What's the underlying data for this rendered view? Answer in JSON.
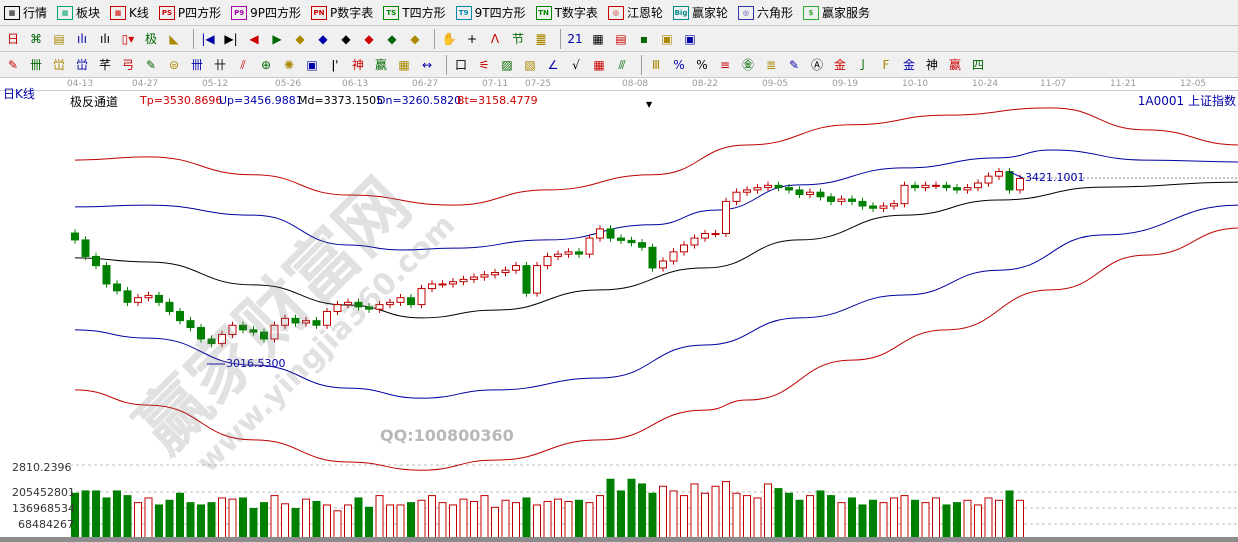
{
  "toolbar1": [
    {
      "icon": "table-icon",
      "label": "行情",
      "c": "#000"
    },
    {
      "icon": "blocks-icon",
      "label": "板块",
      "c": "#0a6"
    },
    {
      "icon": "kline-icon",
      "label": "K线",
      "c": "#c00"
    },
    {
      "icon": "ps-icon",
      "label": "P四方形",
      "tag": "PS",
      "c": "#c00"
    },
    {
      "icon": "p9-icon",
      "label": "9P四方形",
      "tag": "P9",
      "c": "#a0a"
    },
    {
      "icon": "pn-icon",
      "label": "P数字表",
      "tag": "PN",
      "c": "#c00"
    },
    {
      "icon": "ts-icon",
      "label": "T四方形",
      "tag": "TS",
      "c": "#080"
    },
    {
      "icon": "t9-icon",
      "label": "9T四方形",
      "tag": "T9",
      "c": "#08a"
    },
    {
      "icon": "tn-icon",
      "label": "T数字表",
      "tag": "TN",
      "c": "#080"
    },
    {
      "icon": "gann-wheel-icon",
      "label": "江恩轮",
      "tag": "◎",
      "c": "#c00"
    },
    {
      "icon": "winner-wheel-icon",
      "label": "赢家轮",
      "tag": "Big",
      "c": "#088"
    },
    {
      "icon": "hexagon-icon",
      "label": "六角形",
      "tag": "◎",
      "c": "#33a"
    },
    {
      "icon": "dollar-icon",
      "label": "赢家服务",
      "tag": "$",
      "c": "#3a3"
    }
  ],
  "toolbar2": [
    "日▾",
    "⌘",
    "▤",
    "ılı",
    "ılı",
    "▯▾",
    "极",
    "◣",
    "|◀",
    "▶|",
    "◀",
    "▶",
    "◆",
    "◆",
    "◆",
    "◆",
    "◆",
    "◆",
    "✋",
    "+",
    "ᐱ",
    "节",
    "䷀",
    "21",
    "▦",
    "▤",
    "▪",
    "▣",
    "▣"
  ],
  "toolbar3": [
    "✎",
    "卌",
    "峃",
    "峃",
    "芊",
    "弓",
    "✎",
    "⊜",
    "卌",
    "卄",
    "⫽",
    "⊕",
    "✺",
    "▣",
    "ǀ'",
    "神",
    "赢",
    "▦",
    "↔",
    "口",
    "⚟",
    "▨",
    "▧",
    "∠",
    "√",
    "▦",
    "⫻",
    "Ⅲ",
    "%",
    "%",
    "≡",
    "㊎",
    "≣",
    "✎",
    "Ⓐ",
    "金",
    "亅",
    "F",
    "金",
    "神",
    "赢",
    "四"
  ],
  "period_label": "日K线",
  "dates": [
    "04-13",
    "04-27",
    "05-12",
    "05-26",
    "06-13",
    "06-27",
    "07-11",
    "07-25",
    "08-08",
    "08-22",
    "09-05",
    "09-19",
    "10-10",
    "10-24",
    "11-07",
    "11-21",
    "12-05"
  ],
  "indicator": {
    "name": "极反通道",
    "tp": "Tp=3530.8696",
    "up": "Up=3456.9881",
    "md": "Md=3373.1505",
    "dn": "Dn=3260.5820",
    "bt": "Bt=3158.4779"
  },
  "symbol": "1A0001  上证指数",
  "low_marker": "3016.5300",
  "high_marker": "3421.1001",
  "watermark": {
    "site": "赢家财富网",
    "url": "www.yingjia360.com",
    "qq": "QQ:100800360"
  },
  "volume_axis": {
    "top": "2810.2396",
    "ticks": [
      "205452801",
      "136968534",
      "68484267"
    ]
  },
  "colors": {
    "up": "#c00000",
    "down": "#008000",
    "tp": "#c00000",
    "up_line": "#0000a0",
    "md": "#000000",
    "dn": "#0000a0",
    "bt": "#c00000"
  },
  "chart_data": {
    "type": "candlestick",
    "close": [
      3286,
      3250,
      3230,
      3190,
      3175,
      3150,
      3160,
      3165,
      3150,
      3130,
      3110,
      3095,
      3070,
      3060,
      3080,
      3100,
      3090,
      3085,
      3070,
      3100,
      3115,
      3105,
      3110,
      3100,
      3130,
      3145,
      3150,
      3140,
      3135,
      3145,
      3150,
      3160,
      3145,
      3180,
      3190,
      3190,
      3195,
      3200,
      3205,
      3210,
      3215,
      3220,
      3230,
      3170,
      3230,
      3250,
      3255,
      3260,
      3255,
      3290,
      3310,
      3290,
      3285,
      3280,
      3270,
      3225,
      3240,
      3260,
      3275,
      3290,
      3300,
      3300,
      3370,
      3390,
      3395,
      3400,
      3405,
      3400,
      3395,
      3385,
      3390,
      3380,
      3370,
      3375,
      3370,
      3360,
      3355,
      3360,
      3365,
      3405,
      3400,
      3405,
      3405,
      3400,
      3395,
      3400,
      3410,
      3425,
      3435,
      3395,
      3420
    ],
    "volume": [
      200000000,
      210000000,
      210000000,
      180000000,
      210000000,
      190000000,
      160000000,
      180000000,
      150000000,
      170000000,
      200000000,
      160000000,
      150000000,
      160000000,
      180000000,
      175000000,
      180000000,
      135000000,
      160000000,
      190000000,
      155000000,
      135000000,
      175000000,
      165000000,
      150000000,
      125000000,
      150000000,
      180000000,
      140000000,
      190000000,
      150000000,
      150000000,
      160000000,
      170000000,
      190000000,
      160000000,
      150000000,
      175000000,
      165000000,
      190000000,
      140000000,
      170000000,
      160000000,
      180000000,
      150000000,
      165000000,
      175000000,
      165000000,
      170000000,
      160000000,
      190000000,
      260000000,
      210000000,
      260000000,
      240000000,
      200000000,
      230000000,
      210000000,
      190000000,
      240000000,
      200000000,
      230000000,
      250000000,
      200000000,
      190000000,
      180000000,
      240000000,
      220000000,
      200000000,
      170000000,
      190000000,
      210000000,
      190000000,
      160000000,
      180000000,
      150000000,
      170000000,
      160000000,
      180000000,
      190000000,
      170000000,
      160000000,
      180000000,
      150000000,
      160000000,
      170000000,
      150000000,
      180000000,
      170000000,
      210000000,
      170000000
    ],
    "channels": [
      {
        "name": "Tp",
        "pts": [
          [
            0,
            3460
          ],
          [
            7,
            3467
          ],
          [
            17,
            3428
          ],
          [
            26,
            3384
          ],
          [
            36,
            3362
          ],
          [
            45,
            3395
          ],
          [
            55,
            3428
          ],
          [
            64,
            3493
          ],
          [
            74,
            3537
          ],
          [
            83,
            3558
          ],
          [
            93,
            3574
          ],
          [
            102,
            3526
          ],
          [
            111,
            3493
          ]
        ]
      },
      {
        "name": "Up",
        "pts": [
          [
            0,
            3358
          ],
          [
            7,
            3362
          ],
          [
            17,
            3340
          ],
          [
            26,
            3275
          ],
          [
            31,
            3264
          ],
          [
            36,
            3268
          ],
          [
            45,
            3286
          ],
          [
            55,
            3319
          ],
          [
            61,
            3351
          ],
          [
            69,
            3406
          ],
          [
            79,
            3443
          ],
          [
            88,
            3465
          ],
          [
            93,
            3482
          ],
          [
            102,
            3460
          ],
          [
            111,
            3456
          ]
        ]
      },
      {
        "name": "Md",
        "pts": [
          [
            0,
            3247
          ],
          [
            7,
            3238
          ],
          [
            17,
            3188
          ],
          [
            26,
            3144
          ],
          [
            33,
            3116
          ],
          [
            40,
            3133
          ],
          [
            50,
            3177
          ],
          [
            60,
            3225
          ],
          [
            69,
            3286
          ],
          [
            79,
            3340
          ],
          [
            88,
            3373
          ],
          [
            98,
            3401
          ],
          [
            111,
            3412
          ]
        ]
      },
      {
        "name": "Dn",
        "pts": [
          [
            0,
            3090
          ],
          [
            7,
            3072
          ],
          [
            17,
            3013
          ],
          [
            26,
            2963
          ],
          [
            33,
            2941
          ],
          [
            40,
            2959
          ],
          [
            50,
            2985
          ],
          [
            60,
            3057
          ],
          [
            69,
            3116
          ],
          [
            79,
            3166
          ],
          [
            88,
            3220
          ],
          [
            98,
            3297
          ],
          [
            111,
            3362
          ]
        ]
      },
      {
        "name": "Bt",
        "pts": [
          [
            0,
            2959
          ],
          [
            7,
            2926
          ],
          [
            17,
            2850
          ],
          [
            26,
            2802
          ],
          [
            33,
            2784
          ],
          [
            40,
            2806
          ],
          [
            50,
            2850
          ],
          [
            60,
            2915
          ],
          [
            64,
            2937
          ],
          [
            74,
            3024
          ],
          [
            83,
            3090
          ],
          [
            93,
            3177
          ],
          [
            102,
            3253
          ],
          [
            111,
            3312
          ]
        ]
      }
    ]
  }
}
